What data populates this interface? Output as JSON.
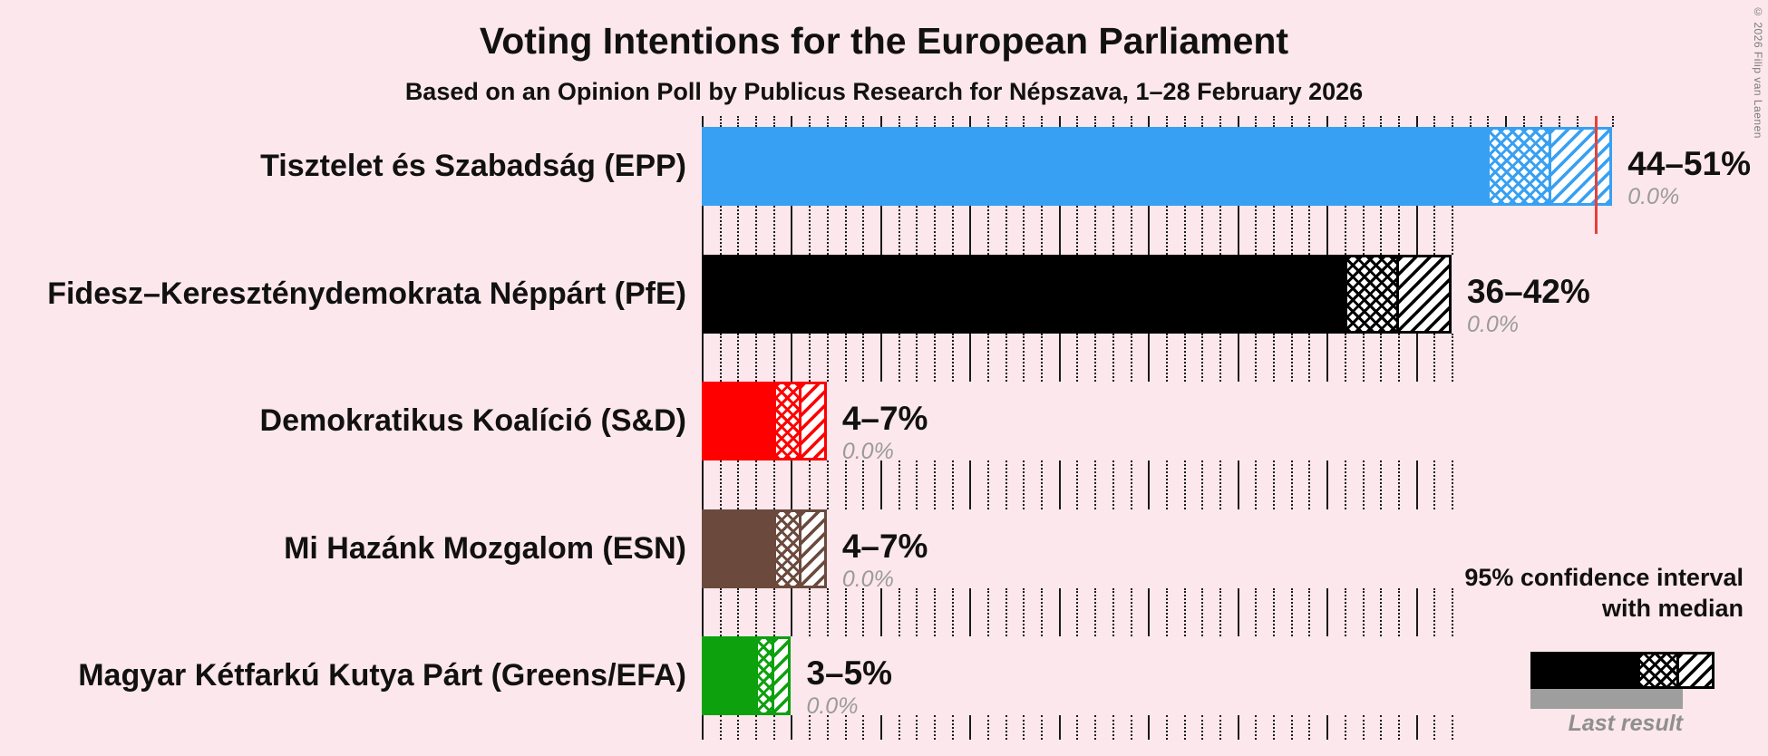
{
  "title": "Voting Intentions for the European Parliament",
  "subtitle": "Based on an Opinion Poll by Publicus Research for Népszava, 1–28 February 2026",
  "copyright": "© 2026 Filip van Laenen",
  "legend": {
    "ci_line1": "95% confidence interval",
    "ci_line2": "with median",
    "last_result": "Last result"
  },
  "colors": {
    "background": "#fce7ec",
    "text": "#111111",
    "muted_text": "#9a9a9a",
    "grid": "#1a1a1a",
    "majority_line": "#e8403a",
    "last_result_bar": "#9e9e9e",
    "ci_background": "#ffffff",
    "legend_sample": "#000000"
  },
  "chart_data": {
    "type": "bar",
    "orientation": "horizontal",
    "unit": "%",
    "xlim": [
      0,
      51
    ],
    "grid": {
      "minor_step": 1,
      "major_step": 5,
      "extent": 42
    },
    "majority_line_x": 50,
    "parties": [
      {
        "label": "Tisztelet és Szabadság (EPP)",
        "ci_low": 44,
        "median": 47.5,
        "ci_high": 51,
        "range_label": "44–51%",
        "last_result": 0.0,
        "last_result_label": "0.0%",
        "color": "#38a0f2"
      },
      {
        "label": "Fidesz–Kereszténydemokrata Néppárt (PfE)",
        "ci_low": 36,
        "median": 39,
        "ci_high": 42,
        "range_label": "36–42%",
        "last_result": 0.0,
        "last_result_label": "0.0%",
        "color": "#000000"
      },
      {
        "label": "Demokratikus Koalíció (S&D)",
        "ci_low": 4,
        "median": 5.5,
        "ci_high": 7,
        "range_label": "4–7%",
        "last_result": 0.0,
        "last_result_label": "0.0%",
        "color": "#ff0000"
      },
      {
        "label": "Mi Hazánk Mozgalom (ESN)",
        "ci_low": 4,
        "median": 5.5,
        "ci_high": 7,
        "range_label": "4–7%",
        "last_result": 0.0,
        "last_result_label": "0.0%",
        "color": "#6b4a3d"
      },
      {
        "label": "Magyar Kétfarkú Kutya Párt (Greens/EFA)",
        "ci_low": 3,
        "median": 4,
        "ci_high": 5,
        "range_label": "3–5%",
        "last_result": 0.0,
        "last_result_label": "0.0%",
        "color": "#0da10d"
      }
    ]
  }
}
